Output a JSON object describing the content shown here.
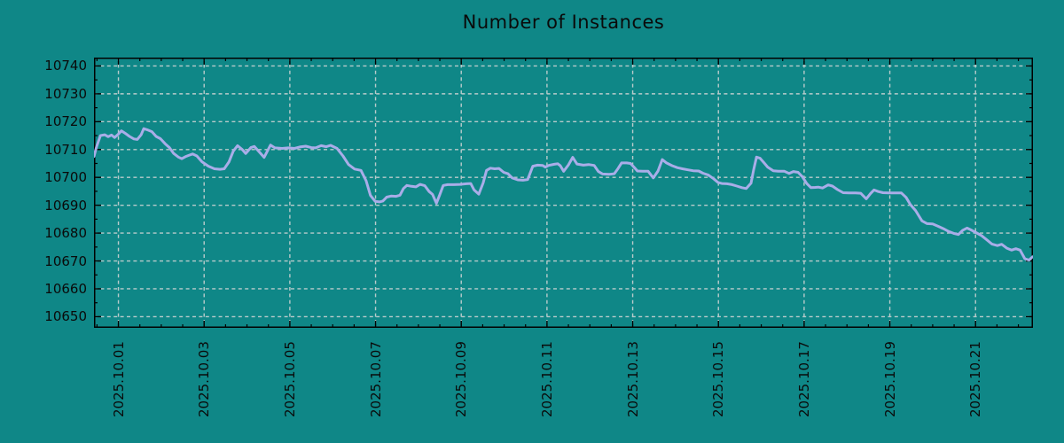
{
  "chart_data": {
    "type": "line",
    "title": "Number of Instances",
    "legend": "none",
    "colors": {
      "background": "#0f8787",
      "grid": "#b9cbcb",
      "axis": "#000000",
      "text": "#0a0a0a"
    },
    "x_axis": {
      "unit": "date",
      "tick_labels": [
        "2025.10.01",
        "2025.10.03",
        "2025.10.05",
        "2025.10.07",
        "2025.10.09",
        "2025.10.11",
        "2025.10.13",
        "2025.10.15",
        "2025.10.17",
        "2025.10.19",
        "2025.10.21"
      ],
      "tick_positions_days": [
        0,
        2,
        4,
        6,
        8,
        10,
        12,
        14,
        16,
        18,
        20
      ],
      "minor_tick_step_days": 0.5,
      "range_days": [
        -0.57,
        21.34
      ]
    },
    "y_axis": {
      "ticks": [
        10650,
        10660,
        10670,
        10680,
        10690,
        10700,
        10710,
        10720,
        10730,
        10740
      ],
      "minor_tick_step": 5,
      "range": [
        10646,
        10743
      ]
    },
    "grid": {
      "style": "dashed",
      "major_only": true
    },
    "series": [
      {
        "name": "instances",
        "color": "#a9ade8",
        "line_width": 3,
        "points": [
          [
            -0.57,
            10707.5
          ],
          [
            -0.51,
            10711.0
          ],
          [
            -0.42,
            10715.0
          ],
          [
            -0.32,
            10715.3
          ],
          [
            -0.24,
            10714.6
          ],
          [
            -0.16,
            10715.2
          ],
          [
            -0.09,
            10714.3
          ],
          [
            -0.01,
            10715.4
          ],
          [
            0.07,
            10716.7
          ],
          [
            0.16,
            10715.8
          ],
          [
            0.26,
            10714.7
          ],
          [
            0.36,
            10713.8
          ],
          [
            0.44,
            10713.6
          ],
          [
            0.53,
            10715.3
          ],
          [
            0.59,
            10717.5
          ],
          [
            0.67,
            10717.1
          ],
          [
            0.78,
            10716.4
          ],
          [
            0.88,
            10714.7
          ],
          [
            0.98,
            10713.9
          ],
          [
            1.09,
            10712.1
          ],
          [
            1.19,
            10710.7
          ],
          [
            1.29,
            10708.6
          ],
          [
            1.4,
            10707.3
          ],
          [
            1.48,
            10706.7
          ],
          [
            1.56,
            10707.4
          ],
          [
            1.64,
            10707.9
          ],
          [
            1.73,
            10708.4
          ],
          [
            1.83,
            10707.7
          ],
          [
            1.95,
            10705.6
          ],
          [
            2.1,
            10704.0
          ],
          [
            2.24,
            10703.1
          ],
          [
            2.37,
            10702.9
          ],
          [
            2.47,
            10703.1
          ],
          [
            2.58,
            10705.6
          ],
          [
            2.68,
            10709.4
          ],
          [
            2.78,
            10711.4
          ],
          [
            2.89,
            10710.0
          ],
          [
            2.97,
            10708.6
          ],
          [
            3.09,
            10710.7
          ],
          [
            3.17,
            10711.1
          ],
          [
            3.3,
            10708.9
          ],
          [
            3.4,
            10707.2
          ],
          [
            3.55,
            10711.6
          ],
          [
            3.65,
            10710.6
          ],
          [
            3.82,
            10710.4
          ],
          [
            3.96,
            10710.6
          ],
          [
            4.11,
            10710.4
          ],
          [
            4.23,
            10710.9
          ],
          [
            4.37,
            10711.2
          ],
          [
            4.5,
            10710.7
          ],
          [
            4.6,
            10710.6
          ],
          [
            4.73,
            10711.4
          ],
          [
            4.85,
            10711.0
          ],
          [
            4.95,
            10711.5
          ],
          [
            5.1,
            10710.4
          ],
          [
            5.24,
            10707.7
          ],
          [
            5.37,
            10704.6
          ],
          [
            5.51,
            10703.0
          ],
          [
            5.66,
            10702.5
          ],
          [
            5.78,
            10698.8
          ],
          [
            5.88,
            10693.5
          ],
          [
            5.99,
            10691.4
          ],
          [
            6.09,
            10691.2
          ],
          [
            6.17,
            10691.5
          ],
          [
            6.26,
            10692.9
          ],
          [
            6.36,
            10693.3
          ],
          [
            6.48,
            10693.2
          ],
          [
            6.57,
            10693.6
          ],
          [
            6.65,
            10696.0
          ],
          [
            6.73,
            10697.1
          ],
          [
            6.84,
            10696.8
          ],
          [
            6.94,
            10696.6
          ],
          [
            7.04,
            10697.5
          ],
          [
            7.15,
            10697.0
          ],
          [
            7.25,
            10694.9
          ],
          [
            7.33,
            10693.9
          ],
          [
            7.42,
            10690.7
          ],
          [
            7.5,
            10693.9
          ],
          [
            7.58,
            10697.1
          ],
          [
            7.68,
            10697.4
          ],
          [
            7.83,
            10697.4
          ],
          [
            7.97,
            10697.5
          ],
          [
            8.12,
            10697.7
          ],
          [
            8.22,
            10697.8
          ],
          [
            8.3,
            10695.5
          ],
          [
            8.41,
            10694.0
          ],
          [
            8.51,
            10698.0
          ],
          [
            8.59,
            10702.5
          ],
          [
            8.68,
            10703.3
          ],
          [
            8.78,
            10703.1
          ],
          [
            8.88,
            10703.2
          ],
          [
            8.99,
            10701.8
          ],
          [
            9.09,
            10701.3
          ],
          [
            9.19,
            10699.8
          ],
          [
            9.32,
            10699.1
          ],
          [
            9.44,
            10699.0
          ],
          [
            9.55,
            10699.2
          ],
          [
            9.61,
            10701.6
          ],
          [
            9.67,
            10704.0
          ],
          [
            9.78,
            10704.4
          ],
          [
            9.9,
            10704.3
          ],
          [
            9.96,
            10703.7
          ],
          [
            10.04,
            10704.3
          ],
          [
            10.17,
            10704.7
          ],
          [
            10.25,
            10704.9
          ],
          [
            10.31,
            10704.2
          ],
          [
            10.39,
            10702.2
          ],
          [
            10.5,
            10704.5
          ],
          [
            10.6,
            10707.2
          ],
          [
            10.7,
            10704.8
          ],
          [
            10.85,
            10704.4
          ],
          [
            10.97,
            10704.6
          ],
          [
            11.1,
            10704.3
          ],
          [
            11.2,
            10702.1
          ],
          [
            11.3,
            10701.2
          ],
          [
            11.45,
            10701.1
          ],
          [
            11.57,
            10701.3
          ],
          [
            11.66,
            10703.2
          ],
          [
            11.74,
            10705.2
          ],
          [
            11.86,
            10705.2
          ],
          [
            11.95,
            10705.0
          ],
          [
            12.03,
            10703.7
          ],
          [
            12.11,
            10702.3
          ],
          [
            12.23,
            10702.2
          ],
          [
            12.36,
            10702.2
          ],
          [
            12.48,
            10699.8
          ],
          [
            12.59,
            10702.3
          ],
          [
            12.69,
            10706.4
          ],
          [
            12.79,
            10705.2
          ],
          [
            12.92,
            10704.2
          ],
          [
            13.04,
            10703.5
          ],
          [
            13.16,
            10703.1
          ],
          [
            13.29,
            10702.7
          ],
          [
            13.41,
            10702.4
          ],
          [
            13.54,
            10702.3
          ],
          [
            13.64,
            10701.5
          ],
          [
            13.76,
            10700.9
          ],
          [
            13.89,
            10699.5
          ],
          [
            13.99,
            10698.2
          ],
          [
            14.08,
            10697.8
          ],
          [
            14.2,
            10697.7
          ],
          [
            14.32,
            10697.4
          ],
          [
            14.43,
            10696.9
          ],
          [
            14.55,
            10696.3
          ],
          [
            14.65,
            10696.0
          ],
          [
            14.76,
            10697.9
          ],
          [
            14.82,
            10702.6
          ],
          [
            14.89,
            10707.3
          ],
          [
            14.97,
            10706.9
          ],
          [
            15.06,
            10705.3
          ],
          [
            15.15,
            10703.7
          ],
          [
            15.28,
            10702.4
          ],
          [
            15.4,
            10702.2
          ],
          [
            15.54,
            10702.2
          ],
          [
            15.65,
            10701.4
          ],
          [
            15.75,
            10702.1
          ],
          [
            15.86,
            10701.8
          ],
          [
            15.96,
            10700.2
          ],
          [
            16.06,
            10697.8
          ],
          [
            16.16,
            10696.3
          ],
          [
            16.26,
            10696.4
          ],
          [
            16.33,
            10696.5
          ],
          [
            16.43,
            10696.2
          ],
          [
            16.56,
            10697.3
          ],
          [
            16.66,
            10696.9
          ],
          [
            16.78,
            10695.6
          ],
          [
            16.91,
            10694.5
          ],
          [
            17.05,
            10694.4
          ],
          [
            17.2,
            10694.4
          ],
          [
            17.32,
            10694.3
          ],
          [
            17.45,
            10692.3
          ],
          [
            17.55,
            10694.2
          ],
          [
            17.63,
            10695.5
          ],
          [
            17.73,
            10694.9
          ],
          [
            17.84,
            10694.5
          ],
          [
            17.98,
            10694.4
          ],
          [
            18.13,
            10694.4
          ],
          [
            18.27,
            10694.4
          ],
          [
            18.38,
            10692.8
          ],
          [
            18.48,
            10690.2
          ],
          [
            18.6,
            10688.1
          ],
          [
            18.75,
            10684.4
          ],
          [
            18.87,
            10683.4
          ],
          [
            19.0,
            10683.3
          ],
          [
            19.12,
            10682.5
          ],
          [
            19.25,
            10681.6
          ],
          [
            19.37,
            10680.6
          ],
          [
            19.49,
            10679.9
          ],
          [
            19.6,
            10679.5
          ],
          [
            19.7,
            10681.0
          ],
          [
            19.8,
            10681.8
          ],
          [
            19.91,
            10681.0
          ],
          [
            20.01,
            10680.2
          ],
          [
            20.14,
            10679.1
          ],
          [
            20.26,
            10677.6
          ],
          [
            20.38,
            10676.1
          ],
          [
            20.51,
            10675.5
          ],
          [
            20.61,
            10676.0
          ],
          [
            20.73,
            10674.6
          ],
          [
            20.84,
            10673.9
          ],
          [
            20.94,
            10674.4
          ],
          [
            21.04,
            10673.9
          ],
          [
            21.15,
            10670.8
          ],
          [
            21.25,
            10670.3
          ],
          [
            21.33,
            10671.5
          ]
        ]
      }
    ]
  }
}
